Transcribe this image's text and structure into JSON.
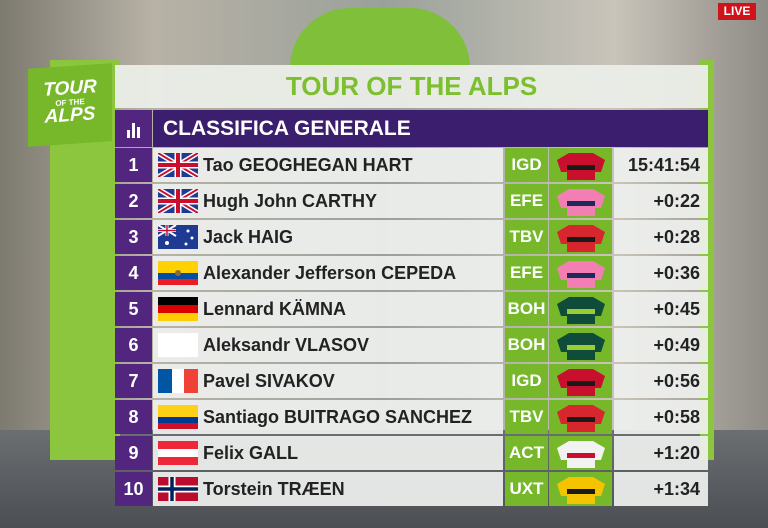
{
  "live": "LIVE",
  "logo": {
    "line1": "TOUR",
    "line2": "OF THE",
    "line3": "ALPS"
  },
  "header": {
    "title": "TOUR OF THE ALPS",
    "subtitle": "CLASSIFICA GENERALE"
  },
  "table": {
    "rows": [
      [
        "1",
        "Tao GEOGHEGAN HART",
        "IGD",
        "15:41:54"
      ],
      [
        "2",
        "Hugh John CARTHY",
        "EFE",
        "+0:22"
      ],
      [
        "3",
        "Jack HAIG",
        "TBV",
        "+0:28"
      ],
      [
        "4",
        "Alexander Jefferson CEPEDA",
        "EFE",
        "+0:36"
      ],
      [
        "5",
        "Lennard KÄMNA",
        "BOH",
        "+0:45"
      ],
      [
        "6",
        "Aleksandr VLASOV",
        "BOH",
        "+0:49"
      ],
      [
        "7",
        "Pavel SIVAKOV",
        "IGD",
        "+0:56"
      ],
      [
        "8",
        "Santiago BUITRAGO SANCHEZ",
        "TBV",
        "+0:58"
      ],
      [
        "9",
        "Felix GALL",
        "ACT",
        "+1:20"
      ],
      [
        "10",
        "Torstein TRÆEN",
        "UXT",
        "+1:34"
      ]
    ]
  }
}
